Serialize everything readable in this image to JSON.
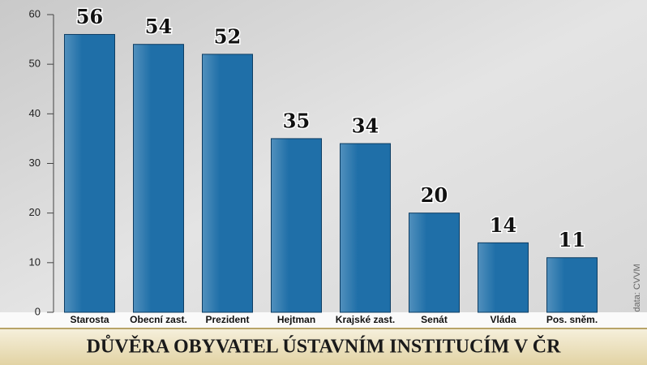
{
  "chart_data": {
    "type": "bar",
    "title": "DŮVĚRA OBYVATEL ÚSTAVNÍM INSTITUCÍM V ČR",
    "source": "data: CVVM",
    "categories": [
      "Starosta",
      "Obecní zast.",
      "Prezident",
      "Hejtman",
      "Krajské zast.",
      "Senát",
      "Vláda",
      "Pos. sněm."
    ],
    "values": [
      56,
      54,
      52,
      35,
      34,
      20,
      14,
      11
    ],
    "color": "#1f6fa8",
    "ylim": [
      0,
      60
    ],
    "yticks": [
      0,
      10,
      20,
      30,
      40,
      50,
      60
    ],
    "grid": false
  }
}
